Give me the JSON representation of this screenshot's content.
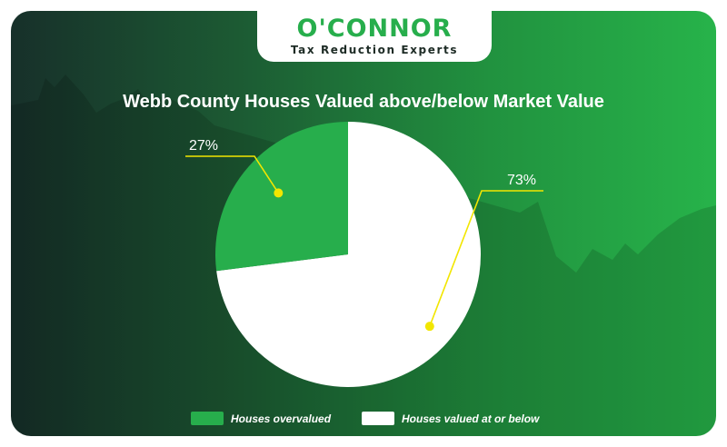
{
  "brand": {
    "name": "O'CONNOR",
    "tagline": "Tax Reduction Experts"
  },
  "colors": {
    "overvalued": "#27ae4c",
    "at_or_below": "#ffffff",
    "callout": "#f2e600"
  },
  "chart_data": {
    "type": "pie",
    "title": "Webb County Houses Valued above/below Market Value",
    "slices": [
      {
        "name": "Houses overvalued",
        "value": 27,
        "label": "27%",
        "color": "#27ae4c"
      },
      {
        "name": "Houses valued at or below",
        "value": 73,
        "label": "73%",
        "color": "#ffffff"
      }
    ],
    "legend_position": "bottom"
  }
}
